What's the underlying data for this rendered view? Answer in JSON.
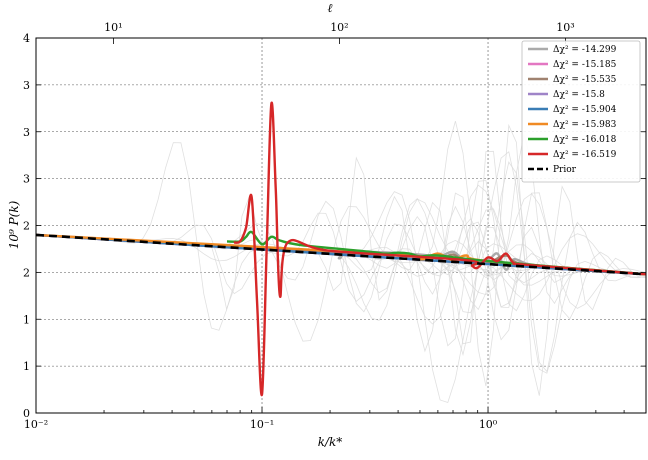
{
  "chart_data": {
    "type": "line",
    "xlabel": "k/k*",
    "ylabel": "10⁹ P(k)",
    "top_xlabel": "ℓ",
    "x_scale": "log",
    "xlim": [
      0.01,
      5
    ],
    "ylim": [
      0,
      4
    ],
    "x_ticks": [
      {
        "value": 0.01,
        "label": "10⁻²"
      },
      {
        "value": 0.1,
        "label": "10⁻¹"
      },
      {
        "value": 1,
        "label": "10⁰"
      }
    ],
    "y_ticks": [
      {
        "value": 0,
        "label": "0"
      },
      {
        "value": 0.5,
        "label": "1"
      },
      {
        "value": 1.0,
        "label": "1"
      },
      {
        "value": 1.5,
        "label": "2"
      },
      {
        "value": 2.0,
        "label": "2"
      },
      {
        "value": 2.5,
        "label": "3"
      },
      {
        "value": 3.0,
        "label": "3"
      },
      {
        "value": 3.5,
        "label": "3"
      },
      {
        "value": 4.0,
        "label": "4"
      }
    ],
    "top_ticks": [
      {
        "k": 0.022,
        "label": "10¹"
      },
      {
        "k": 0.22,
        "label": "10²"
      },
      {
        "k": 2.2,
        "label": "10³"
      }
    ],
    "vlines": [
      0.1,
      1
    ],
    "legend_position": "top-right",
    "grid": "horizontal dashed",
    "prior": {
      "name": "Prior",
      "color": "#000000",
      "x": [
        0.01,
        5
      ],
      "y": [
        1.9,
        1.48
      ]
    },
    "series": [
      {
        "name": "Δχ² = -14.299",
        "color": "#aaaaaa",
        "x": [
          0.01,
          0.06,
          0.2,
          0.22,
          0.25,
          0.5,
          0.6,
          0.7,
          0.8,
          1.0,
          1.1,
          1.2,
          1.3,
          1.5,
          2.0,
          5.0
        ],
        "y": [
          1.9,
          1.78,
          1.72,
          1.65,
          1.72,
          1.69,
          1.66,
          1.72,
          1.62,
          1.64,
          1.7,
          1.53,
          1.64,
          1.59,
          1.55,
          1.48
        ]
      },
      {
        "name": "Δχ² = -15.185",
        "color": "#e377c2",
        "x": [
          0.01,
          5
        ],
        "y": [
          1.9,
          1.48
        ]
      },
      {
        "name": "Δχ² = -15.535",
        "color": "#a08270",
        "x": [
          0.01,
          0.4,
          0.6,
          0.7,
          0.8,
          1.0,
          1.2,
          1.5,
          5.0
        ],
        "y": [
          1.9,
          1.68,
          1.64,
          1.69,
          1.61,
          1.6,
          1.68,
          1.58,
          1.48
        ]
      },
      {
        "name": "Δχ² = -15.8",
        "color": "#9f84c8",
        "x": [
          0.01,
          5
        ],
        "y": [
          1.9,
          1.48
        ]
      },
      {
        "name": "Δχ² = -15.904",
        "color": "#3a7db5",
        "x": [
          0.01,
          5
        ],
        "y": [
          1.9,
          1.48
        ]
      },
      {
        "name": "Δχ² = -15.983",
        "color": "#f08a24",
        "x": [
          0.01,
          0.4,
          0.5,
          0.6,
          0.7,
          0.8,
          1.0,
          5.0
        ],
        "y": [
          1.9,
          1.69,
          1.64,
          1.7,
          1.63,
          1.68,
          1.62,
          1.48
        ]
      },
      {
        "name": "Δχ² = -16.018",
        "color": "#2ca02c",
        "x": [
          0.07,
          0.08,
          0.085,
          0.09,
          0.1,
          0.11,
          0.12,
          0.15,
          0.3,
          0.35,
          0.4,
          0.45,
          0.5,
          0.6,
          1.0,
          5.0
        ],
        "y": [
          1.83,
          1.83,
          1.88,
          1.93,
          1.8,
          1.88,
          1.84,
          1.79,
          1.72,
          1.7,
          1.71,
          1.7,
          1.67,
          1.68,
          1.62,
          1.48
        ]
      },
      {
        "name": "Δχ² = -16.519",
        "color": "#d62728",
        "x": [
          0.075,
          0.08,
          0.085,
          0.09,
          0.095,
          0.1,
          0.105,
          0.11,
          0.115,
          0.12,
          0.13,
          0.2,
          0.8,
          0.85,
          0.9,
          1.0,
          1.1,
          1.2,
          1.3,
          1.5,
          5.0
        ],
        "y": [
          1.82,
          1.83,
          1.98,
          2.3,
          1.2,
          0.2,
          1.8,
          3.3,
          2.4,
          1.25,
          1.82,
          1.73,
          1.63,
          1.57,
          1.55,
          1.66,
          1.62,
          1.7,
          1.6,
          1.58,
          1.48
        ]
      }
    ]
  }
}
